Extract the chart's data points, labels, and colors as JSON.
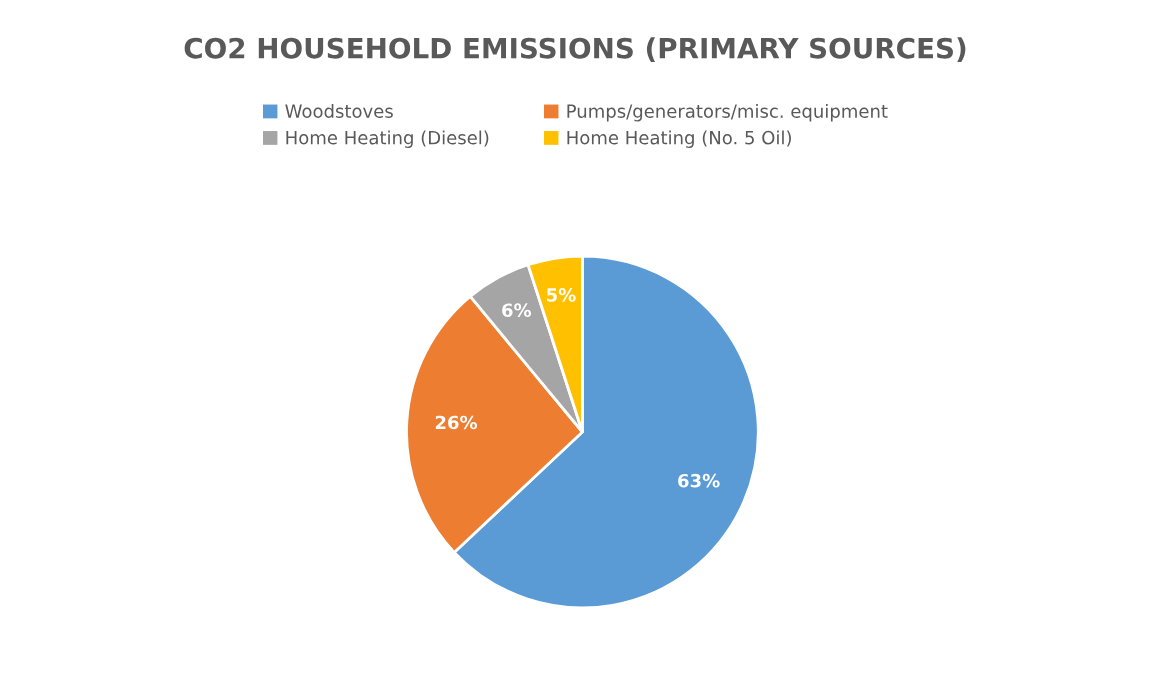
{
  "chart_data": {
    "type": "pie",
    "title": "CO2 HOUSEHOLD EMISSIONS (PRIMARY SOURCES)",
    "categories": [
      "Woodstoves",
      "Pumps/generators/misc. equipment",
      "Home Heating (Diesel)",
      "Home Heating (No. 5 Oil)"
    ],
    "values": [
      63,
      26,
      6,
      5
    ],
    "value_labels": [
      "63%",
      "26%",
      "6%",
      "5%"
    ],
    "colors": [
      "#5b9bd5",
      "#ed7d31",
      "#a5a5a5",
      "#ffc000"
    ],
    "legend": "top"
  }
}
